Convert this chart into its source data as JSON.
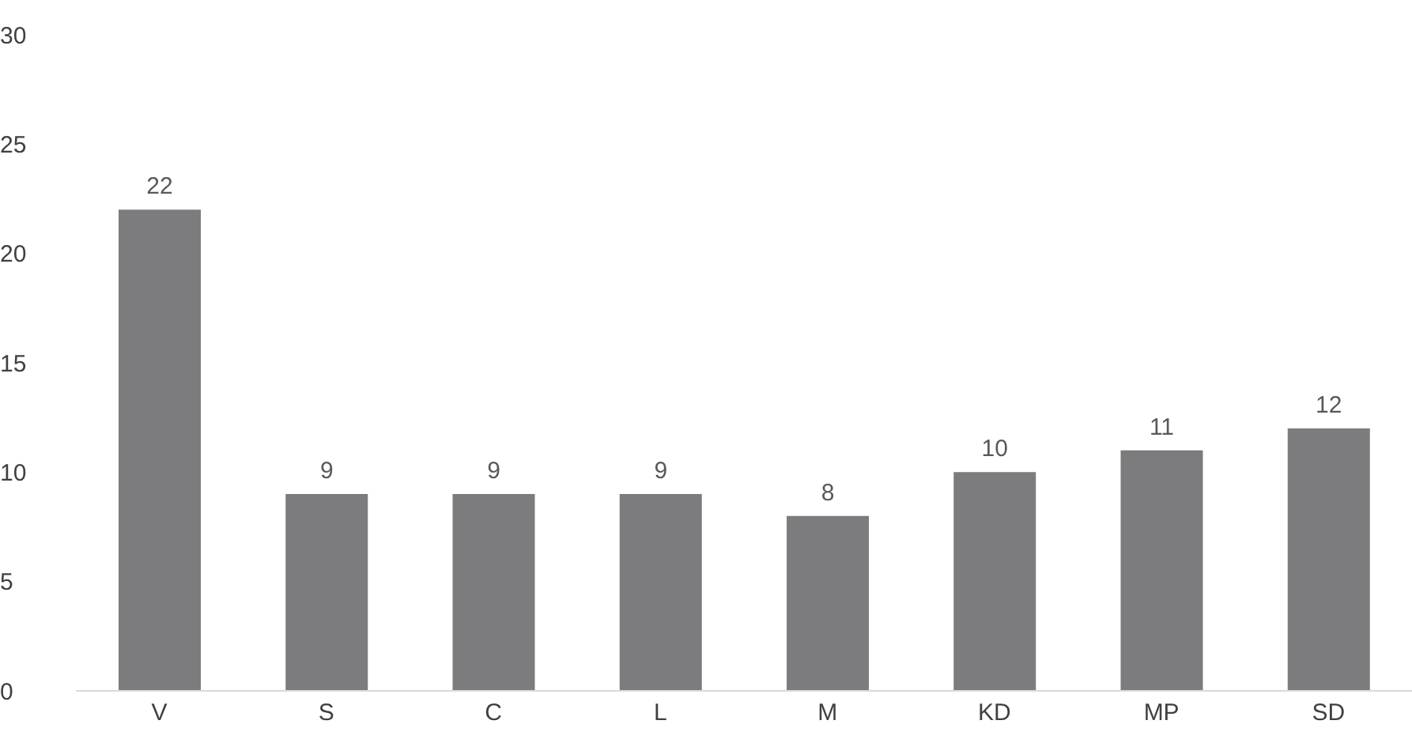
{
  "chart_data": {
    "type": "bar",
    "categories": [
      "V",
      "S",
      "C",
      "L",
      "M",
      "KD",
      "MP",
      "SD"
    ],
    "values": [
      22,
      9,
      9,
      9,
      8,
      10,
      11,
      12
    ],
    "color": "#7c7c7e",
    "ylim": [
      0,
      30
    ],
    "yticks": [
      0,
      5,
      10,
      15,
      20,
      25,
      30
    ],
    "grid": false,
    "data_labels": true
  }
}
